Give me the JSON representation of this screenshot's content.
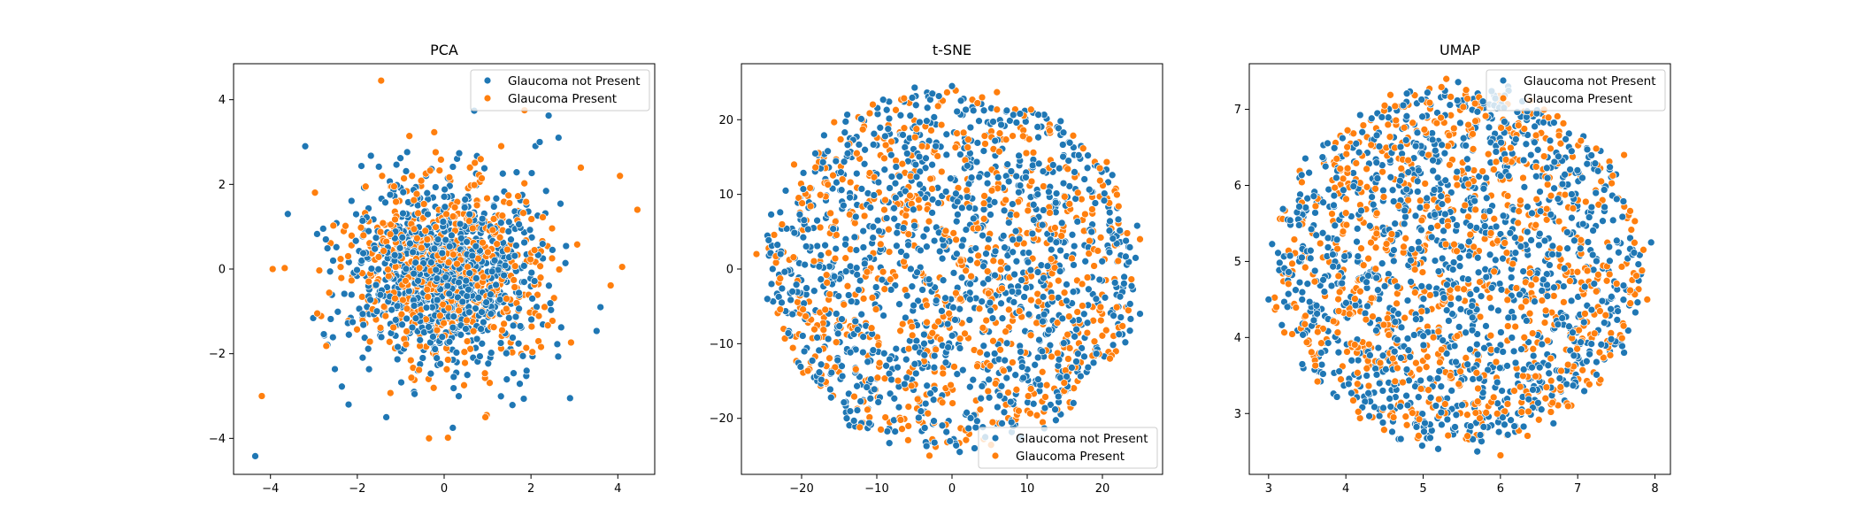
{
  "figure": {
    "panels": [
      "PCA",
      "t-SNE",
      "UMAP"
    ]
  },
  "chart_data": [
    {
      "type": "scatter",
      "title": "PCA",
      "xlabel": "",
      "ylabel": "",
      "xlim": [
        -4.85,
        4.85
      ],
      "ylim": [
        -4.85,
        4.85
      ],
      "xticks": [
        -4,
        -2,
        0,
        2,
        4
      ],
      "yticks": [
        -4,
        -2,
        0,
        2,
        4
      ],
      "xtick_labels": [
        "−4",
        "−2",
        "0",
        "2",
        "4"
      ],
      "ytick_labels": [
        "−4",
        "−2",
        "0",
        "2",
        "4"
      ],
      "grid": false,
      "legend": "top-right",
      "distribution": "gaussian",
      "center": [
        0,
        0
      ],
      "spread": [
        1.1,
        1.1
      ],
      "series": [
        {
          "name": "Glaucoma not Present",
          "color": "#1f77b4",
          "count": 900,
          "sample_points": [
            [
              -4.35,
              -4.42
            ],
            [
              -3.2,
              2.9
            ],
            [
              -3.6,
              1.3
            ],
            [
              3.6,
              -0.9
            ],
            [
              0.2,
              -3.75
            ],
            [
              2.9,
              -3.05
            ],
            [
              -2.2,
              -3.2
            ],
            [
              2.2,
              3.0
            ]
          ]
        },
        {
          "name": "Glaucoma Present",
          "color": "#ff7f0e",
          "count": 600,
          "sample_points": [
            [
              -1.45,
              4.45
            ],
            [
              -4.2,
              -3.0
            ],
            [
              4.45,
              1.4
            ],
            [
              4.05,
              2.2
            ],
            [
              -3.95,
              0.0
            ],
            [
              1.85,
              3.75
            ],
            [
              0.95,
              -3.5
            ],
            [
              4.1,
              0.05
            ]
          ]
        }
      ]
    },
    {
      "type": "scatter",
      "title": "t-SNE",
      "xlabel": "",
      "ylabel": "",
      "xlim": [
        -28,
        28
      ],
      "ylim": [
        -27.5,
        27.5
      ],
      "xticks": [
        -20,
        -10,
        0,
        10,
        20
      ],
      "yticks": [
        -20,
        -10,
        0,
        10,
        20
      ],
      "xtick_labels": [
        "−20",
        "−10",
        "0",
        "10",
        "20"
      ],
      "ytick_labels": [
        "−20",
        "−10",
        "0",
        "10",
        "20"
      ],
      "grid": false,
      "legend": "bottom-right",
      "distribution": "disk",
      "center": [
        0,
        0
      ],
      "radius": [
        25.5,
        25.0
      ],
      "series": [
        {
          "name": "Glaucoma not Present",
          "color": "#1f77b4",
          "count": 1100,
          "sample_points": [
            [
              0,
              24.5
            ],
            [
              -24,
              -2
            ],
            [
              25,
              -6
            ],
            [
              -14,
              -20
            ],
            [
              14,
              19
            ],
            [
              3,
              -24
            ]
          ]
        },
        {
          "name": "Glaucoma Present",
          "color": "#ff7f0e",
          "count": 700,
          "sample_points": [
            [
              -26,
              2
            ],
            [
              25,
              4
            ],
            [
              4,
              23
            ],
            [
              -3,
              -25
            ],
            [
              -21,
              14
            ],
            [
              21,
              -12
            ]
          ]
        }
      ]
    },
    {
      "type": "scatter",
      "title": "UMAP",
      "xlabel": "",
      "ylabel": "",
      "xlim": [
        2.75,
        8.2
      ],
      "ylim": [
        2.2,
        7.6
      ],
      "xticks": [
        3,
        4,
        5,
        6,
        7,
        8
      ],
      "yticks": [
        3,
        4,
        5,
        6,
        7
      ],
      "xtick_labels": [
        "3",
        "4",
        "5",
        "6",
        "7",
        "8"
      ],
      "ytick_labels": [
        "3",
        "4",
        "5",
        "6",
        "7"
      ],
      "grid": false,
      "legend": "top-right",
      "distribution": "disk",
      "center": [
        5.45,
        4.95
      ],
      "radius": [
        2.45,
        2.45
      ],
      "series": [
        {
          "name": "Glaucoma not Present",
          "color": "#1f77b4",
          "count": 1200,
          "sample_points": [
            [
              3.0,
              4.5
            ],
            [
              7.95,
              5.25
            ],
            [
              5.7,
              2.5
            ],
            [
              6.1,
              7.3
            ],
            [
              3.4,
              6.1
            ],
            [
              7.6,
              3.8
            ]
          ]
        },
        {
          "name": "Glaucoma Present",
          "color": "#ff7f0e",
          "count": 800,
          "sample_points": [
            [
              3.1,
              4.4
            ],
            [
              7.9,
              4.5
            ],
            [
              6.0,
              2.45
            ],
            [
              5.3,
              7.4
            ],
            [
              3.6,
              3.7
            ],
            [
              7.6,
              6.4
            ]
          ]
        }
      ]
    }
  ]
}
